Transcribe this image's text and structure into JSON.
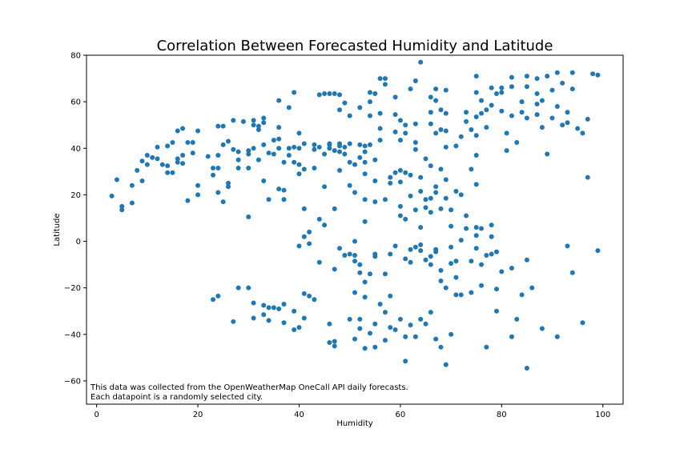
{
  "chart_data": {
    "type": "scatter",
    "title": "Correlation Between Forecasted Humidity and Latitude",
    "xlabel": "Humidity",
    "ylabel": "Latitude",
    "xlim": [
      -2,
      104
    ],
    "ylim": [
      -70,
      80
    ],
    "xticks": [
      "0",
      "20",
      "40",
      "60",
      "80",
      "100"
    ],
    "yticks": [
      "−60",
      "−40",
      "−20",
      "0",
      "20",
      "40",
      "60",
      "80"
    ],
    "annotation_lines": [
      "This data was collected from the OpenWeatherMap OneCall API daily forecasts.",
      "Each datapoint is a randomly selected city."
    ],
    "marker_color": "#1f77b4",
    "grid": false,
    "points": [
      [
        3,
        19.5
      ],
      [
        4,
        26.5
      ],
      [
        5,
        15
      ],
      [
        5,
        13.5
      ],
      [
        7,
        16.5
      ],
      [
        7,
        24
      ],
      [
        8,
        30.5
      ],
      [
        9,
        26
      ],
      [
        9,
        34.5
      ],
      [
        10,
        37
      ],
      [
        10,
        33
      ],
      [
        11,
        36
      ],
      [
        12,
        35.5
      ],
      [
        12,
        40.5
      ],
      [
        13,
        33
      ],
      [
        14,
        29.5
      ],
      [
        14,
        32.5
      ],
      [
        14,
        41
      ],
      [
        15,
        29.5
      ],
      [
        15,
        42.5
      ],
      [
        16,
        47.5
      ],
      [
        16,
        35.5
      ],
      [
        16,
        34
      ],
      [
        17,
        37
      ],
      [
        17,
        48.5
      ],
      [
        17,
        33.5
      ],
      [
        18,
        17.5
      ],
      [
        18,
        42.5
      ],
      [
        19,
        38
      ],
      [
        19,
        42.5
      ],
      [
        20,
        47.5
      ],
      [
        20,
        24
      ],
      [
        20,
        20
      ],
      [
        22,
        36.5
      ],
      [
        23,
        31.5
      ],
      [
        23,
        28.5
      ],
      [
        24,
        37
      ],
      [
        24,
        21
      ],
      [
        24,
        31.5
      ],
      [
        24,
        49.5
      ],
      [
        25,
        49.5
      ],
      [
        25,
        41.5
      ],
      [
        25,
        17
      ],
      [
        26,
        25
      ],
      [
        26,
        23.5
      ],
      [
        26,
        43
      ],
      [
        27,
        52
      ],
      [
        27,
        39.5
      ],
      [
        28,
        38.5
      ],
      [
        28,
        31.5
      ],
      [
        28,
        35
      ],
      [
        29,
        51.5
      ],
      [
        30,
        39
      ],
      [
        30,
        37.5
      ],
      [
        30,
        31.5
      ],
      [
        30,
        10.5
      ],
      [
        31,
        52
      ],
      [
        31,
        50
      ],
      [
        31,
        40
      ],
      [
        32,
        48
      ],
      [
        32,
        49.5
      ],
      [
        32,
        35
      ],
      [
        33,
        26
      ],
      [
        33,
        41.5
      ],
      [
        33,
        53
      ],
      [
        33,
        51
      ],
      [
        34,
        18
      ],
      [
        34,
        38
      ],
      [
        35,
        43.5
      ],
      [
        35,
        37.5
      ],
      [
        36,
        49
      ],
      [
        36,
        44
      ],
      [
        36,
        60.5
      ],
      [
        36,
        40
      ],
      [
        36,
        22.5
      ],
      [
        37,
        22
      ],
      [
        37,
        18
      ],
      [
        37,
        34
      ],
      [
        38,
        40
      ],
      [
        38,
        57.5
      ],
      [
        38,
        37
      ],
      [
        39,
        40.5
      ],
      [
        39,
        64
      ],
      [
        39,
        34
      ],
      [
        40,
        46.5
      ],
      [
        40,
        40
      ],
      [
        40,
        33
      ],
      [
        40,
        -2
      ],
      [
        40,
        29
      ],
      [
        41,
        42
      ],
      [
        41,
        31
      ],
      [
        41,
        14
      ],
      [
        41,
        2
      ],
      [
        42,
        4
      ],
      [
        42,
        -1
      ],
      [
        43,
        39.5
      ],
      [
        43,
        31.5
      ],
      [
        43,
        41.5
      ],
      [
        44,
        63
      ],
      [
        44,
        9.5
      ],
      [
        44,
        40.5
      ],
      [
        44,
        -9
      ],
      [
        45,
        63.5
      ],
      [
        45,
        37.5
      ],
      [
        45,
        23.5
      ],
      [
        45,
        7
      ],
      [
        46,
        42
      ],
      [
        46,
        41.5
      ],
      [
        46,
        40
      ],
      [
        46,
        63.5
      ],
      [
        47,
        39
      ],
      [
        47,
        63.5
      ],
      [
        47,
        14
      ],
      [
        47,
        -12
      ],
      [
        48,
        41
      ],
      [
        48,
        42
      ],
      [
        48,
        56.5
      ],
      [
        48,
        63
      ],
      [
        48,
        30.5
      ],
      [
        48,
        38.5
      ],
      [
        48,
        -3
      ],
      [
        49,
        59.5
      ],
      [
        49,
        40.5
      ],
      [
        49,
        37.5
      ],
      [
        49,
        -6
      ],
      [
        50,
        24
      ],
      [
        50,
        34
      ],
      [
        50,
        42
      ],
      [
        50,
        54
      ],
      [
        50,
        -5.5
      ],
      [
        51,
        33
      ],
      [
        51,
        21
      ],
      [
        51,
        0
      ],
      [
        51,
        -8.5
      ],
      [
        51,
        -6
      ],
      [
        52,
        41.5
      ],
      [
        52,
        57.5
      ],
      [
        52,
        36
      ],
      [
        52,
        -13.5
      ],
      [
        52,
        -10
      ],
      [
        53,
        8.5
      ],
      [
        53,
        18
      ],
      [
        53,
        29
      ],
      [
        53,
        38.5
      ],
      [
        53,
        34
      ],
      [
        53,
        41
      ],
      [
        53,
        -17.5
      ],
      [
        54,
        60
      ],
      [
        54,
        64
      ],
      [
        54,
        54
      ],
      [
        54,
        41.5
      ],
      [
        54,
        -14
      ],
      [
        55,
        -5.5
      ],
      [
        55,
        17
      ],
      [
        55,
        63.5
      ],
      [
        55,
        -6.5
      ],
      [
        55,
        26
      ],
      [
        55,
        35
      ],
      [
        56,
        70
      ],
      [
        56,
        55
      ],
      [
        56,
        48.5
      ],
      [
        56,
        43.5
      ],
      [
        57,
        70
      ],
      [
        57,
        18
      ],
      [
        57,
        67.5
      ],
      [
        57,
        -14
      ],
      [
        58,
        27.5
      ],
      [
        58,
        25
      ],
      [
        58,
        -5.5
      ],
      [
        59,
        54.5
      ],
      [
        59,
        47
      ],
      [
        59,
        29.5
      ],
      [
        59,
        -2
      ],
      [
        59,
        62
      ],
      [
        60,
        52
      ],
      [
        60,
        43.5
      ],
      [
        60,
        11
      ],
      [
        60,
        30.5
      ],
      [
        60,
        25.5
      ],
      [
        60,
        15
      ],
      [
        61,
        46.5
      ],
      [
        61,
        29.5
      ],
      [
        61,
        9.5
      ],
      [
        61,
        50
      ],
      [
        61,
        -7.5
      ],
      [
        62,
        65.5
      ],
      [
        62,
        28.5
      ],
      [
        62,
        19.5
      ],
      [
        62,
        -9
      ],
      [
        62,
        -3.5
      ],
      [
        63,
        69
      ],
      [
        63,
        50.5
      ],
      [
        63,
        42.5
      ],
      [
        63,
        39.5
      ],
      [
        63,
        13.5
      ],
      [
        63,
        -2.5
      ],
      [
        64,
        77
      ],
      [
        64,
        27.5
      ],
      [
        64,
        21.5
      ],
      [
        64,
        6
      ],
      [
        64,
        -4
      ],
      [
        64,
        -1.5
      ],
      [
        65,
        35.5
      ],
      [
        65,
        18
      ],
      [
        65,
        14.5
      ],
      [
        65,
        -8
      ],
      [
        66,
        62
      ],
      [
        66,
        55.5
      ],
      [
        66,
        50.5
      ],
      [
        66,
        32.5
      ],
      [
        66,
        18.5
      ],
      [
        66,
        12.5
      ],
      [
        66,
        -6.5
      ],
      [
        66,
        -10
      ],
      [
        67,
        65.5
      ],
      [
        67,
        60.5
      ],
      [
        67,
        46.5
      ],
      [
        67,
        23.5
      ],
      [
        67,
        21
      ],
      [
        67,
        -3.5
      ],
      [
        67,
        -4.5
      ],
      [
        68,
        56.5
      ],
      [
        68,
        48
      ],
      [
        68,
        31
      ],
      [
        68,
        14
      ],
      [
        68,
        -12.5
      ],
      [
        68,
        -17
      ],
      [
        69,
        65
      ],
      [
        69,
        55
      ],
      [
        69,
        47.5
      ],
      [
        69,
        40.5
      ],
      [
        69,
        26.5
      ],
      [
        69,
        18.5
      ],
      [
        69,
        -20
      ],
      [
        70,
        13.5
      ],
      [
        70,
        6.5
      ],
      [
        70,
        -2.5
      ],
      [
        70,
        -9.5
      ],
      [
        71,
        41
      ],
      [
        71,
        21.5
      ],
      [
        71,
        -8.5
      ],
      [
        71,
        -15.5
      ],
      [
        72,
        45
      ],
      [
        72,
        20
      ],
      [
        72,
        0.5
      ],
      [
        72,
        -23
      ],
      [
        73,
        55.5
      ],
      [
        73,
        51.5
      ],
      [
        73,
        11
      ],
      [
        73,
        5.5
      ],
      [
        74,
        31
      ],
      [
        74,
        48
      ],
      [
        74,
        -8.5
      ],
      [
        74,
        -22
      ],
      [
        75,
        64
      ],
      [
        75,
        71
      ],
      [
        75,
        53.5
      ],
      [
        75,
        45.5
      ],
      [
        75,
        37
      ],
      [
        75,
        24.5
      ],
      [
        75,
        6
      ],
      [
        75,
        2.5
      ],
      [
        75,
        -3
      ],
      [
        76,
        55
      ],
      [
        76,
        60.5
      ],
      [
        76,
        5.5
      ],
      [
        76,
        -10
      ],
      [
        76,
        -19
      ],
      [
        77,
        56.5
      ],
      [
        77,
        49
      ],
      [
        77,
        -6
      ],
      [
        78,
        66
      ],
      [
        78,
        58.5
      ],
      [
        78,
        7
      ],
      [
        78,
        2
      ],
      [
        78,
        -5.5
      ],
      [
        79,
        63.5
      ],
      [
        79,
        -4.5
      ],
      [
        79,
        -20.5
      ],
      [
        80,
        66
      ],
      [
        80,
        64
      ],
      [
        80,
        56
      ],
      [
        80,
        -13
      ],
      [
        81,
        39
      ],
      [
        81,
        46.5
      ],
      [
        82,
        70.5
      ],
      [
        82,
        66.5
      ],
      [
        82,
        54
      ],
      [
        82,
        -11.5
      ],
      [
        83,
        42.5
      ],
      [
        84,
        60
      ],
      [
        84,
        55.5
      ],
      [
        84,
        -23
      ],
      [
        85,
        71
      ],
      [
        85,
        66.5
      ],
      [
        85,
        53
      ],
      [
        85,
        -8
      ],
      [
        86,
        -20
      ],
      [
        87,
        70
      ],
      [
        87,
        63.5
      ],
      [
        87,
        59
      ],
      [
        87,
        54.5
      ],
      [
        88,
        49
      ],
      [
        88,
        60.5
      ],
      [
        89,
        37.5
      ],
      [
        89,
        71
      ],
      [
        90,
        65
      ],
      [
        90,
        53
      ],
      [
        91,
        72.5
      ],
      [
        91,
        58
      ],
      [
        92,
        68
      ],
      [
        92,
        50
      ],
      [
        93,
        55.5
      ],
      [
        93,
        51
      ],
      [
        94,
        72.5
      ],
      [
        94,
        65.5
      ],
      [
        95,
        48.5
      ],
      [
        96,
        46.5
      ],
      [
        97,
        27.5
      ],
      [
        97,
        52.5
      ],
      [
        98,
        72
      ],
      [
        99,
        71.5
      ],
      [
        99,
        -4
      ],
      [
        96,
        -35
      ],
      [
        93,
        -2
      ],
      [
        94,
        -13.5
      ],
      [
        91,
        -41
      ],
      [
        88,
        -37.5
      ],
      [
        83,
        -33.5
      ],
      [
        85,
        -54.5
      ],
      [
        82,
        -41
      ],
      [
        79,
        -30
      ],
      [
        77,
        -45.5
      ],
      [
        71,
        -23
      ],
      [
        69,
        -53
      ],
      [
        70,
        -40
      ],
      [
        68,
        -45.5
      ],
      [
        67,
        -42
      ],
      [
        65,
        -35.5
      ],
      [
        66,
        -30.5
      ],
      [
        64,
        -33.5
      ],
      [
        63,
        -41
      ],
      [
        62,
        -36
      ],
      [
        61,
        -41
      ],
      [
        61,
        -51.5
      ],
      [
        60,
        -33.5
      ],
      [
        59,
        -38
      ],
      [
        58,
        -37
      ],
      [
        58,
        -23.5
      ],
      [
        57,
        -30.5
      ],
      [
        57,
        -42.5
      ],
      [
        56,
        -27
      ],
      [
        55,
        -45.5
      ],
      [
        55,
        -35.5
      ],
      [
        54,
        -39.5
      ],
      [
        53,
        -46
      ],
      [
        53,
        -24
      ],
      [
        52,
        -33.5
      ],
      [
        52,
        -37.5
      ],
      [
        51,
        -22
      ],
      [
        51,
        -42
      ],
      [
        50,
        -33.5
      ],
      [
        47,
        -43
      ],
      [
        47,
        -45
      ],
      [
        46,
        -43.5
      ],
      [
        46,
        -35.5
      ],
      [
        43,
        -25
      ],
      [
        42,
        -23.5
      ],
      [
        41,
        -22.5
      ],
      [
        41,
        -33
      ],
      [
        40,
        -37
      ],
      [
        39,
        -38
      ],
      [
        39,
        -30
      ],
      [
        37,
        -27
      ],
      [
        37,
        -35
      ],
      [
        36,
        -29
      ],
      [
        35,
        -28.5
      ],
      [
        34,
        -28.5
      ],
      [
        34,
        -34
      ],
      [
        33,
        -31.5
      ],
      [
        33,
        -27.5
      ],
      [
        31,
        -33
      ],
      [
        31,
        -26.5
      ],
      [
        30,
        -20
      ],
      [
        28,
        -20
      ],
      [
        27,
        -34.5
      ],
      [
        24,
        -23.5
      ],
      [
        23,
        -25
      ]
    ]
  }
}
